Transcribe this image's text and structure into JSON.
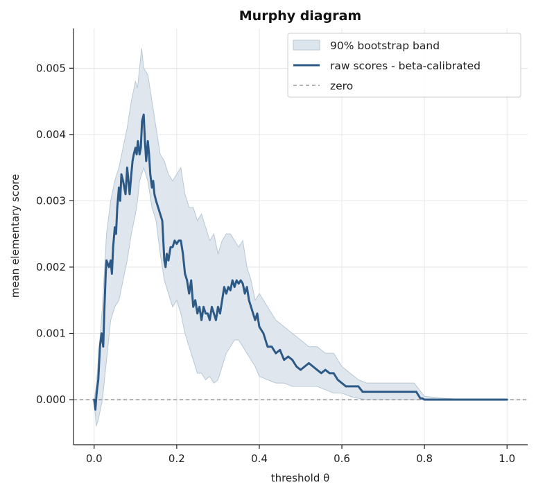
{
  "chart_data": {
    "type": "line",
    "title": "Murphy diagram",
    "xlabel": "threshold θ",
    "ylabel": "mean elementary score",
    "xlim": [
      -0.05,
      1.05
    ],
    "ylim": [
      -0.00068,
      0.0056
    ],
    "x_ticks": [
      0.0,
      0.2,
      0.4,
      0.6,
      0.8,
      1.0
    ],
    "x_tick_labels": [
      "0.0",
      "0.2",
      "0.4",
      "0.6",
      "0.8",
      "1.0"
    ],
    "y_ticks": [
      0.0,
      0.001,
      0.002,
      0.003,
      0.004,
      0.005
    ],
    "y_tick_labels": [
      "0.000",
      "0.001",
      "0.002",
      "0.003",
      "0.004",
      "0.005"
    ],
    "grid": true,
    "legend_position": "top-right",
    "legend": [
      {
        "label": "90% bootstrap band",
        "kind": "band"
      },
      {
        "label": "raw scores - beta-calibrated",
        "kind": "line"
      },
      {
        "label": "zero",
        "kind": "dashed"
      }
    ],
    "colors": {
      "line": "#2d5986",
      "band": "#dde5ec",
      "band_edge": "#b8c8d6",
      "zero": "#999999"
    },
    "series": [
      {
        "name": "raw scores - beta-calibrated",
        "x": [
          0.0,
          0.003,
          0.006,
          0.01,
          0.014,
          0.018,
          0.022,
          0.025,
          0.028,
          0.03,
          0.033,
          0.036,
          0.04,
          0.043,
          0.046,
          0.05,
          0.053,
          0.056,
          0.06,
          0.063,
          0.066,
          0.07,
          0.073,
          0.076,
          0.08,
          0.083,
          0.086,
          0.09,
          0.093,
          0.096,
          0.1,
          0.103,
          0.106,
          0.11,
          0.113,
          0.116,
          0.12,
          0.123,
          0.126,
          0.13,
          0.133,
          0.136,
          0.14,
          0.143,
          0.146,
          0.15,
          0.155,
          0.16,
          0.165,
          0.17,
          0.173,
          0.176,
          0.18,
          0.185,
          0.19,
          0.195,
          0.2,
          0.205,
          0.21,
          0.215,
          0.22,
          0.225,
          0.23,
          0.235,
          0.24,
          0.245,
          0.25,
          0.255,
          0.26,
          0.265,
          0.27,
          0.275,
          0.28,
          0.285,
          0.29,
          0.295,
          0.3,
          0.305,
          0.31,
          0.315,
          0.32,
          0.325,
          0.33,
          0.335,
          0.34,
          0.345,
          0.35,
          0.355,
          0.36,
          0.365,
          0.37,
          0.375,
          0.38,
          0.385,
          0.39,
          0.395,
          0.4,
          0.41,
          0.42,
          0.43,
          0.44,
          0.45,
          0.46,
          0.47,
          0.48,
          0.49,
          0.5,
          0.51,
          0.52,
          0.53,
          0.54,
          0.55,
          0.56,
          0.57,
          0.58,
          0.59,
          0.6,
          0.61,
          0.62,
          0.63,
          0.64,
          0.65,
          0.7,
          0.75,
          0.77,
          0.775,
          0.78,
          0.79,
          0.795,
          0.8,
          0.85,
          0.9,
          0.95,
          1.0
        ],
        "y": [
          0.0,
          -0.00015,
          0.0001,
          0.0003,
          0.0008,
          0.001,
          0.0008,
          0.0014,
          0.0019,
          0.0021,
          0.00205,
          0.002,
          0.0021,
          0.0019,
          0.0023,
          0.0026,
          0.0025,
          0.0029,
          0.0032,
          0.003,
          0.0034,
          0.0033,
          0.0032,
          0.0031,
          0.0035,
          0.0033,
          0.0031,
          0.0034,
          0.0036,
          0.0037,
          0.0038,
          0.0037,
          0.0039,
          0.0037,
          0.0038,
          0.0042,
          0.0043,
          0.0039,
          0.0036,
          0.0039,
          0.0037,
          0.0034,
          0.0032,
          0.0033,
          0.0031,
          0.003,
          0.0029,
          0.0028,
          0.0027,
          0.0021,
          0.002,
          0.0022,
          0.0021,
          0.0023,
          0.0023,
          0.0024,
          0.00235,
          0.0024,
          0.0024,
          0.0022,
          0.0019,
          0.0018,
          0.0016,
          0.0018,
          0.0014,
          0.0015,
          0.0013,
          0.0014,
          0.0012,
          0.0014,
          0.0013,
          0.0013,
          0.0012,
          0.0014,
          0.0013,
          0.0012,
          0.0014,
          0.0013,
          0.0015,
          0.0017,
          0.0016,
          0.0017,
          0.00165,
          0.0018,
          0.0017,
          0.0018,
          0.00175,
          0.0018,
          0.00175,
          0.0016,
          0.0017,
          0.0015,
          0.0014,
          0.0013,
          0.0012,
          0.0013,
          0.0011,
          0.001,
          0.0008,
          0.0008,
          0.0007,
          0.00075,
          0.0006,
          0.00065,
          0.0006,
          0.0005,
          0.00045,
          0.0005,
          0.00055,
          0.0005,
          0.00045,
          0.0004,
          0.00045,
          0.0004,
          0.0004,
          0.0003,
          0.00025,
          0.0002,
          0.0002,
          0.0002,
          0.0002,
          0.00012,
          0.00012,
          0.00012,
          0.00012,
          0.00012,
          0.00012,
          2e-05,
          2e-05,
          0.0,
          0.0,
          0.0,
          0.0,
          0.0
        ]
      }
    ],
    "band": {
      "name": "90% bootstrap band",
      "x": [
        0.0,
        0.005,
        0.01,
        0.02,
        0.03,
        0.04,
        0.05,
        0.06,
        0.07,
        0.08,
        0.09,
        0.1,
        0.105,
        0.11,
        0.115,
        0.12,
        0.13,
        0.14,
        0.15,
        0.16,
        0.17,
        0.18,
        0.19,
        0.2,
        0.21,
        0.22,
        0.23,
        0.24,
        0.25,
        0.26,
        0.27,
        0.28,
        0.29,
        0.3,
        0.31,
        0.32,
        0.33,
        0.34,
        0.35,
        0.36,
        0.37,
        0.38,
        0.39,
        0.4,
        0.42,
        0.44,
        0.46,
        0.48,
        0.5,
        0.52,
        0.54,
        0.56,
        0.58,
        0.6,
        0.62,
        0.64,
        0.66,
        0.7,
        0.75,
        0.775,
        0.8,
        0.85,
        0.9,
        0.95,
        1.0
      ],
      "lower": [
        0.0,
        -0.0004,
        -0.0003,
        0.0,
        0.0006,
        0.0012,
        0.0014,
        0.0015,
        0.0018,
        0.0021,
        0.0025,
        0.0028,
        0.003,
        0.0033,
        0.0034,
        0.0035,
        0.0033,
        0.0029,
        0.0027,
        0.0022,
        0.0018,
        0.0016,
        0.0014,
        0.0015,
        0.0013,
        0.001,
        0.0008,
        0.0006,
        0.0004,
        0.0004,
        0.0003,
        0.00035,
        0.00025,
        0.0003,
        0.0005,
        0.0007,
        0.0008,
        0.0009,
        0.0009,
        0.0008,
        0.0007,
        0.0006,
        0.0005,
        0.00035,
        0.0003,
        0.00025,
        0.00025,
        0.0002,
        0.0002,
        0.0002,
        0.0002,
        0.00015,
        0.0001,
        0.0001,
        5e-05,
        2e-05,
        0.0,
        0.0,
        0.0,
        0.0,
        0.0,
        0.0,
        0.0,
        0.0,
        0.0
      ],
      "upper": [
        0.0,
        0.0002,
        0.0006,
        0.0014,
        0.0025,
        0.003,
        0.0033,
        0.0035,
        0.0038,
        0.0041,
        0.0045,
        0.0048,
        0.0047,
        0.005,
        0.0053,
        0.005,
        0.0049,
        0.0045,
        0.0041,
        0.0037,
        0.0036,
        0.0034,
        0.0033,
        0.0034,
        0.0035,
        0.0031,
        0.0029,
        0.0029,
        0.0027,
        0.0028,
        0.0026,
        0.0024,
        0.0025,
        0.0022,
        0.0024,
        0.0025,
        0.0025,
        0.0024,
        0.0023,
        0.0024,
        0.002,
        0.0018,
        0.0015,
        0.0016,
        0.0014,
        0.0012,
        0.0011,
        0.001,
        0.0009,
        0.0008,
        0.0008,
        0.0007,
        0.0007,
        0.0005,
        0.0004,
        0.0003,
        0.00025,
        0.00025,
        0.00025,
        0.00025,
        5e-05,
        2e-05,
        0.0,
        0.0,
        0.0
      ]
    }
  }
}
